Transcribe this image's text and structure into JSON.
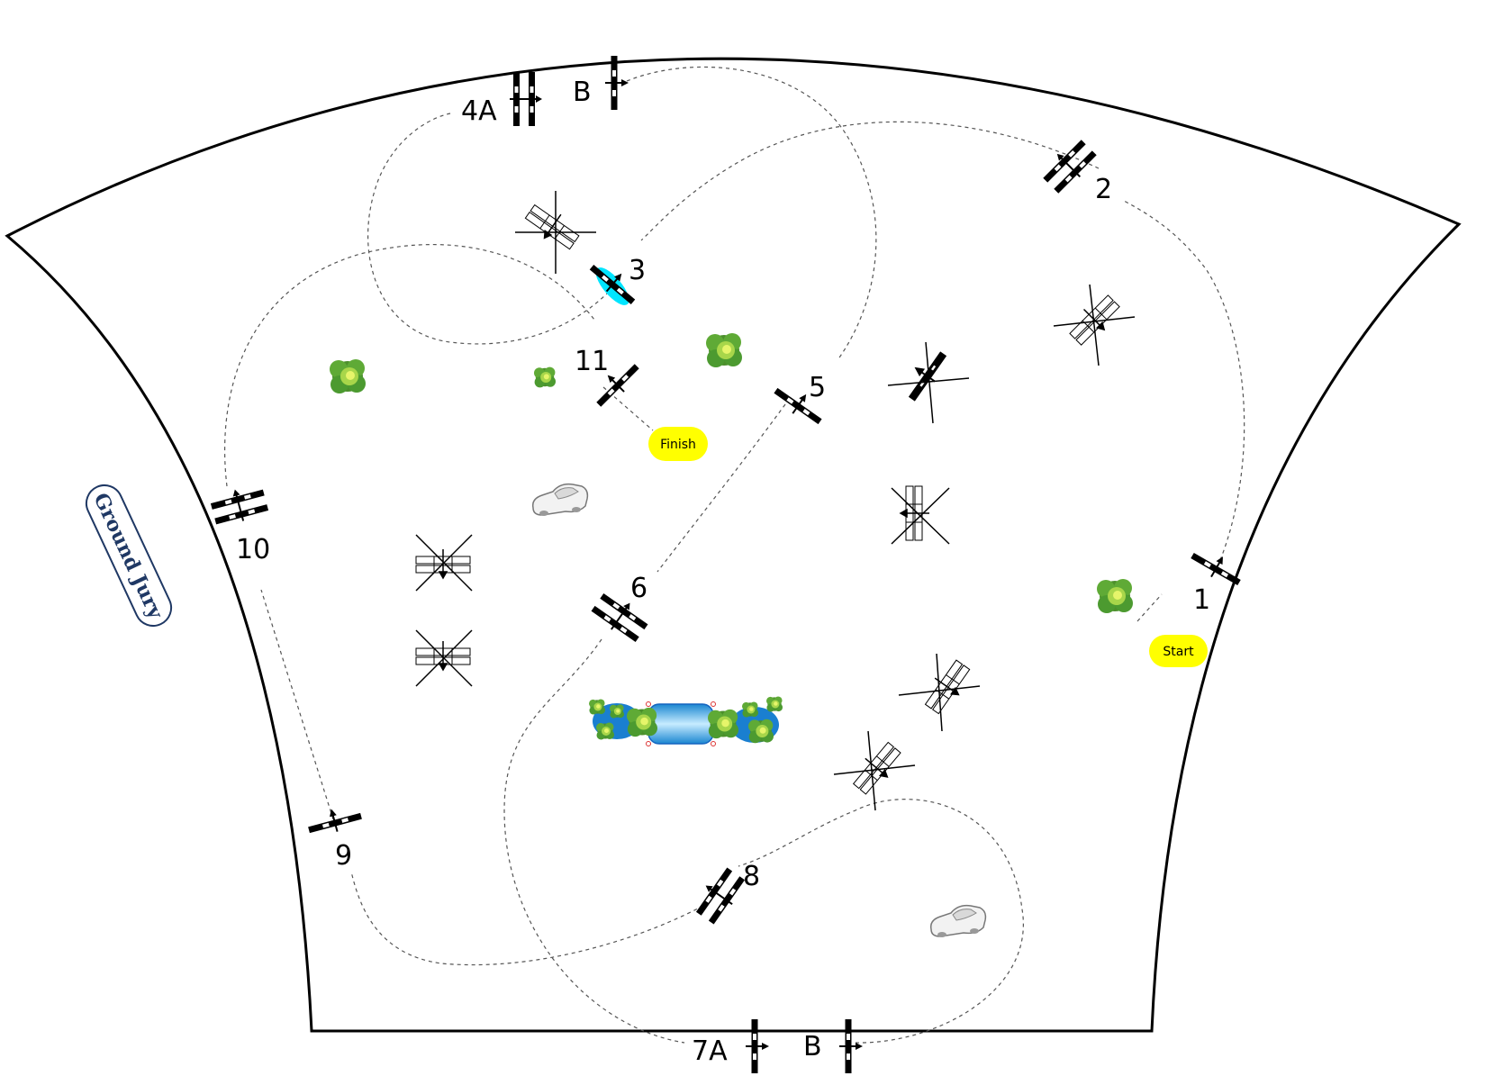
{
  "labels": {
    "start": "Start",
    "finish": "Finish",
    "ground_jury": "Ground Jury"
  },
  "gates": [
    {
      "id": "1",
      "label": "1"
    },
    {
      "id": "2",
      "label": "2"
    },
    {
      "id": "3",
      "label": "3"
    },
    {
      "id": "4a",
      "label": "4A"
    },
    {
      "id": "4b",
      "label": "B"
    },
    {
      "id": "5",
      "label": "5"
    },
    {
      "id": "6",
      "label": "6"
    },
    {
      "id": "7a",
      "label": "7A"
    },
    {
      "id": "7b",
      "label": "B"
    },
    {
      "id": "8",
      "label": "8"
    },
    {
      "id": "9",
      "label": "9"
    },
    {
      "id": "10",
      "label": "10"
    },
    {
      "id": "11",
      "label": "11"
    }
  ],
  "colors": {
    "field_outline": "#000000",
    "path": "#555555",
    "start_finish_fill": "#ffff00",
    "gate_highlight": "#00e5ff",
    "jury_border": "#1f3864",
    "bush": "#3fa535",
    "pond": "#29a3e3"
  },
  "icons": [
    "plane-gate-icon",
    "crossed-plane-icon",
    "bush-icon",
    "car-icon",
    "pond-icon"
  ]
}
